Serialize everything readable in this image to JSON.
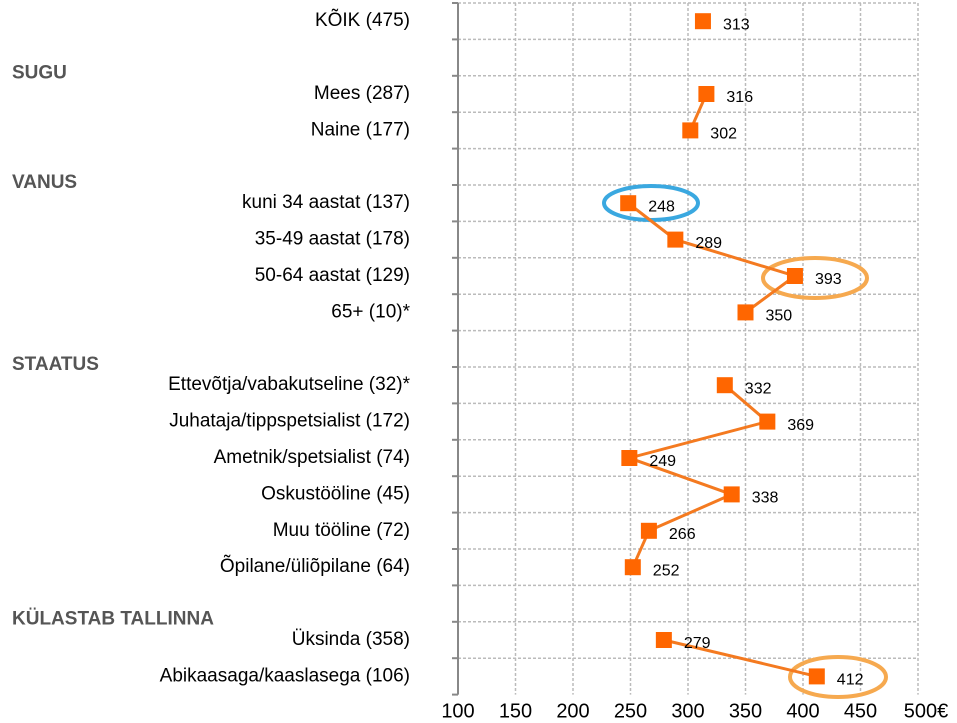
{
  "chart_data": {
    "type": "line",
    "categories": [
      "KÕIK (475)",
      null,
      "Mees (287)",
      "Naine (177)",
      null,
      "kuni 34 aastat (137)",
      "35-49 aastat (178)",
      "50-64 aastat (129)",
      "65+ (10)*",
      null,
      "Ettevõtja/vabakutseline (32)*",
      "Juhataja/tippspetsialist (172)",
      "Ametnik/spetsialist (74)",
      "Oskustööline (45)",
      "Muu tööline (72)",
      "Õpilane/üliõpilane (64)",
      null,
      "Üksinda (358)",
      "Abikaasaga/kaaslasega (106)"
    ],
    "groups": [
      "SUGU",
      "VANUS",
      "STAATUS",
      "KÜLASTAB TALLINNA"
    ],
    "values": [
      313,
      null,
      316,
      302,
      null,
      248,
      289,
      393,
      350,
      null,
      332,
      369,
      249,
      338,
      266,
      252,
      null,
      279,
      412
    ],
    "color": "#ff6600",
    "xlim": [
      100,
      500
    ],
    "xticks": [
      100,
      150,
      200,
      250,
      300,
      350,
      400,
      450,
      {
        "value": 500,
        "label": "500€"
      }
    ],
    "grid": true
  }
}
